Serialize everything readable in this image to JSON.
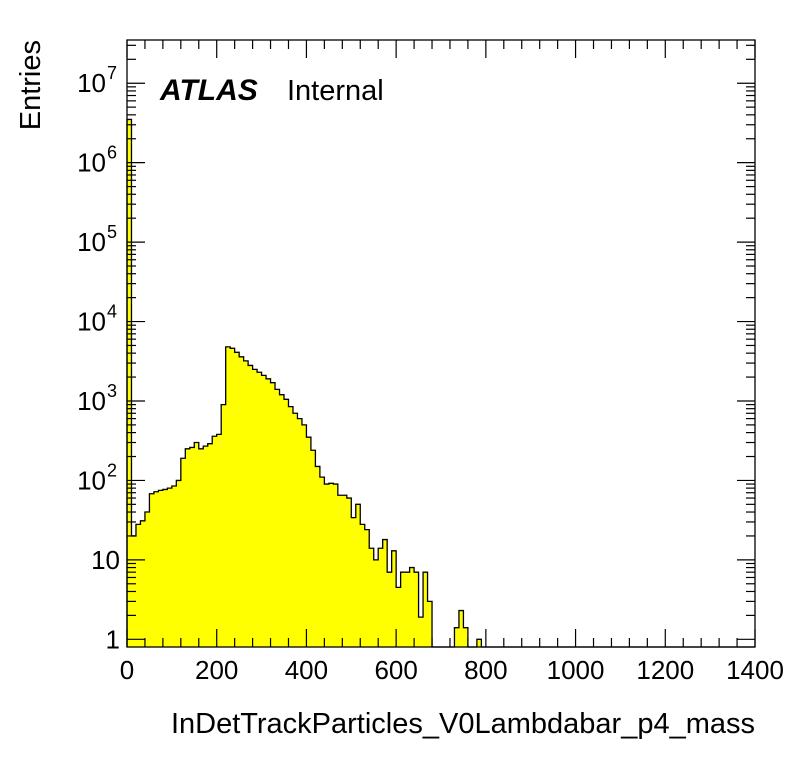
{
  "chart_data": {
    "type": "bar",
    "histogram": true,
    "xlabel": "InDetTrackParticles_V0Lambdabar_p4_mass",
    "ylabel": "Entries",
    "xlim": [
      0,
      1400
    ],
    "ylim": [
      0.8,
      35000000
    ],
    "yscale": "log",
    "bin_width": 10,
    "fill_color": "#ffff00",
    "line_color": "#000000",
    "grid": false,
    "x_ticks": [
      "0",
      "200",
      "400",
      "600",
      "800",
      "1000",
      "1200",
      "1400"
    ],
    "y_ticks": [
      {
        "base": "1",
        "exp": ""
      },
      {
        "base": "10",
        "exp": ""
      },
      {
        "base": "10",
        "exp": "2"
      },
      {
        "base": "10",
        "exp": "3"
      },
      {
        "base": "10",
        "exp": "4"
      },
      {
        "base": "10",
        "exp": "5"
      },
      {
        "base": "10",
        "exp": "6"
      },
      {
        "base": "10",
        "exp": "7"
      }
    ],
    "values": [
      3500000,
      20,
      28,
      31,
      40,
      68,
      72,
      75,
      77,
      80,
      85,
      100,
      190,
      250,
      260,
      300,
      250,
      270,
      290,
      360,
      380,
      900,
      4800,
      4600,
      4100,
      3600,
      3200,
      2800,
      2500,
      2300,
      2100,
      1900,
      1700,
      1400,
      1200,
      1050,
      850,
      700,
      600,
      500,
      350,
      240,
      150,
      110,
      90,
      92,
      90,
      65,
      65,
      60,
      34,
      50,
      28,
      24,
      14,
      10,
      14,
      18,
      7,
      13,
      4.5,
      7,
      7,
      8,
      7,
      1.9,
      7,
      3,
      0,
      0,
      0,
      0,
      0,
      1.4,
      2.3,
      1.4,
      0,
      0,
      1,
      0,
      0,
      0,
      0,
      0,
      0,
      0,
      0,
      0,
      0,
      0,
      0,
      0,
      0,
      0,
      0,
      0,
      0,
      0,
      0,
      0,
      0,
      0,
      0,
      0,
      0,
      0,
      0,
      0,
      0,
      0,
      0,
      0,
      0,
      0,
      0,
      0,
      0,
      0,
      0,
      0,
      0,
      0,
      0,
      0,
      0,
      0,
      0,
      0,
      0,
      0,
      0,
      0,
      0,
      0,
      0,
      0,
      0,
      0,
      0,
      0
    ]
  },
  "label": {
    "experiment": "ATLAS",
    "status": "Internal"
  }
}
